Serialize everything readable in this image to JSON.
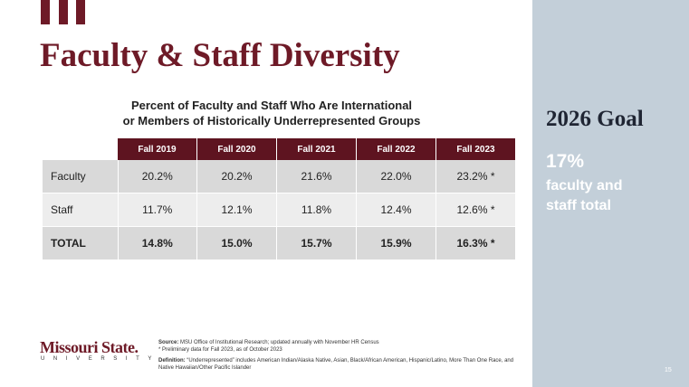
{
  "header": {
    "title": "Faculty & Staff Diversity"
  },
  "table": {
    "title": [
      "Percent of Faculty and Staff Who Are International",
      "or Members of Historically Underrepresented Groups"
    ],
    "columns": [
      "Fall 2019",
      "Fall 2020",
      "Fall 2021",
      "Fall 2022",
      "Fall 2023"
    ],
    "rows": [
      [
        "Faculty",
        "20.2%",
        "20.2%",
        "21.6%",
        "22.0%",
        "23.2% *"
      ],
      [
        "Staff",
        "11.7%",
        "12.1%",
        "11.8%",
        "12.4%",
        "12.6% *"
      ],
      [
        "TOTAL",
        "14.8%",
        "15.0%",
        "15.7%",
        "15.9%",
        "16.3% *"
      ]
    ]
  },
  "goal": {
    "title": "2026 Goal",
    "value": "17%",
    "text": [
      "faculty and",
      "staff total"
    ]
  },
  "logo": {
    "name": "Missouri State.",
    "sub": "UNIVERSITY"
  },
  "notes": {
    "source_label": "Source:",
    "source": "MSU Office of Institutional Research; updated annually with November HR Census",
    "preliminary": "* Preliminary data for Fall 2023, as of October 2023",
    "definition_label": "Definition:",
    "definition": "“Underrepresented” includes American Indian/Alaska Native, Asian, Black/African American, Hispanic/Latino, More Than One Race, and Native Hawaiian/Other Pacific Islander"
  },
  "page_number": "15"
}
